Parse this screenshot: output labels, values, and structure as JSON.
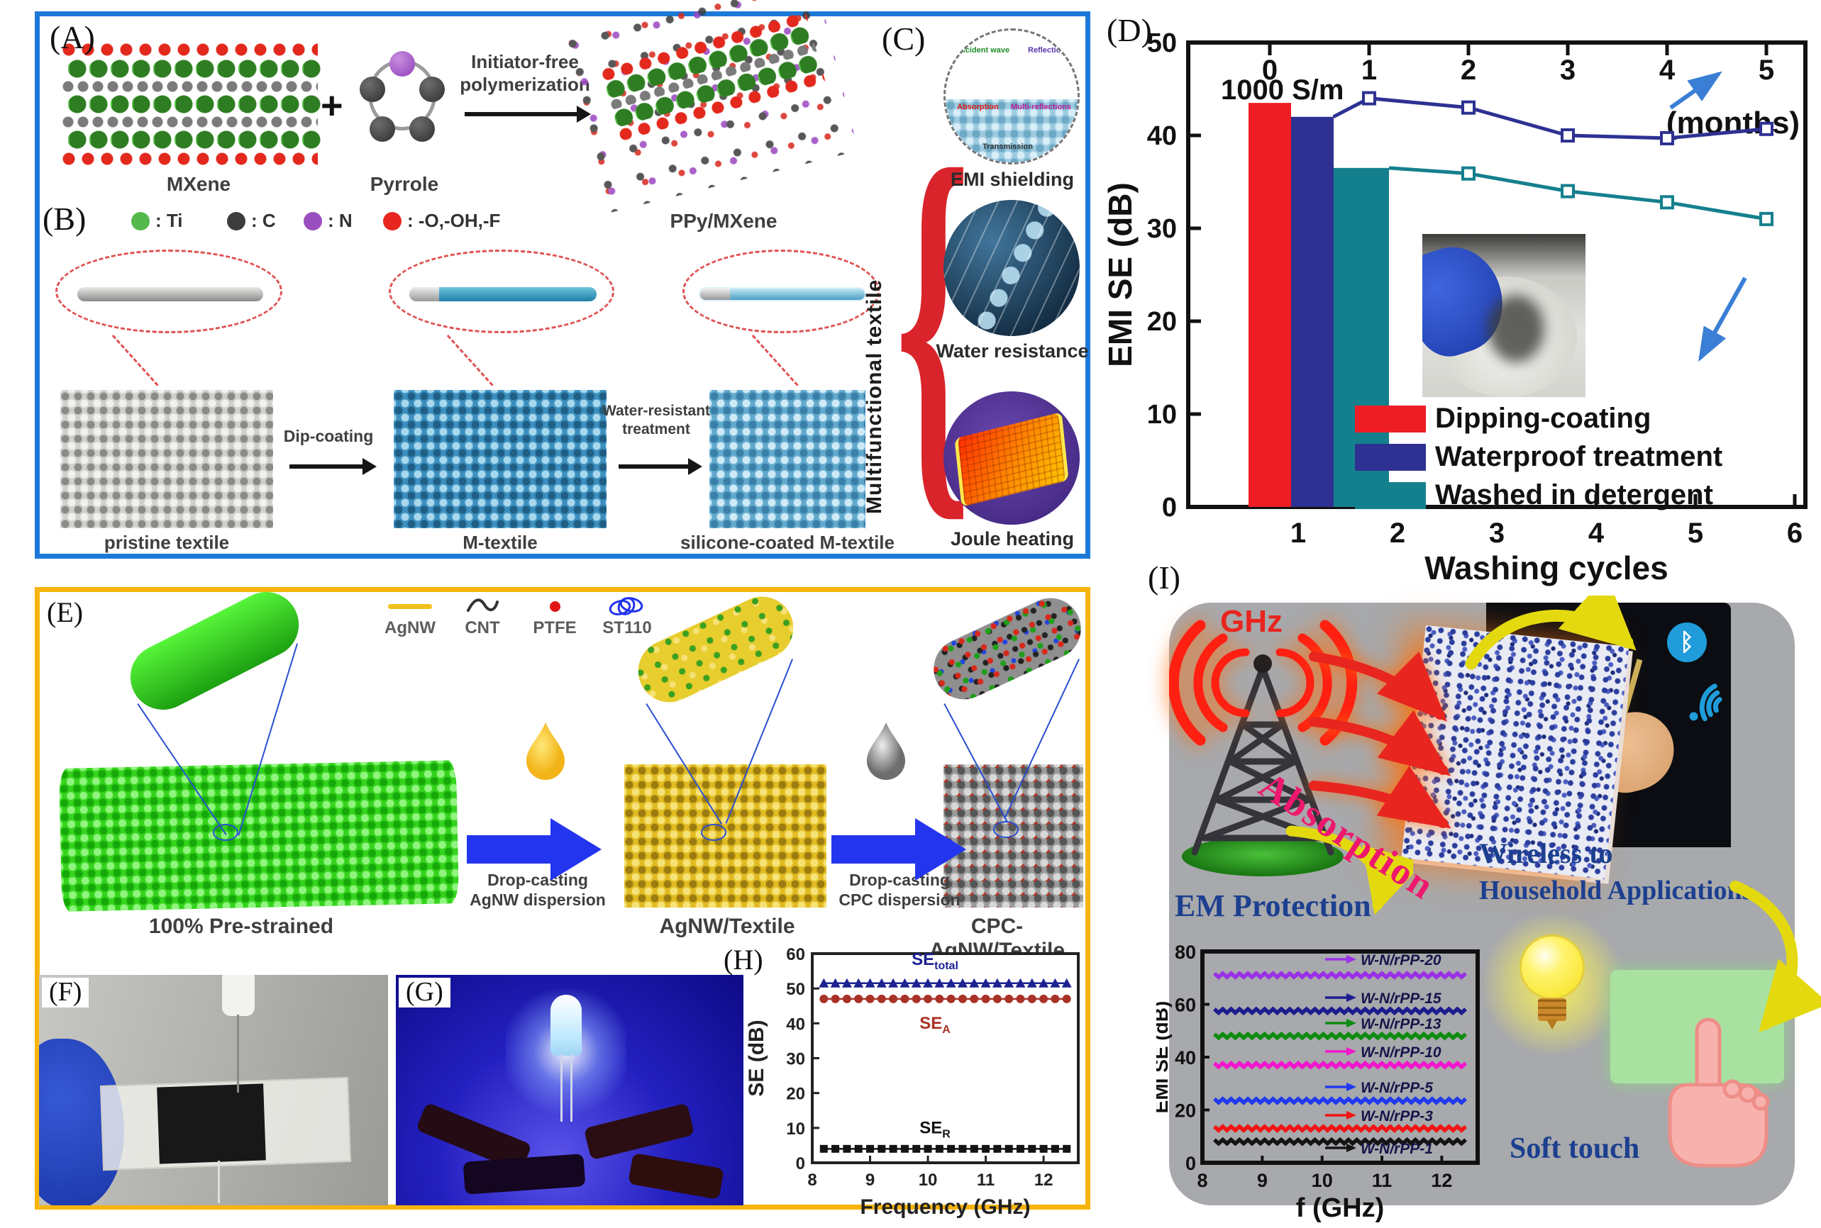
{
  "colors": {
    "box_abc_border": "#1d79d8",
    "box_efgh_border": "#f6b40c",
    "panel_i_bg": "#a7a9ac",
    "dark_blue_text": "#1c3f8f",
    "absorption_pink": "#ee186e",
    "ghz_red": "#e8251f"
  },
  "panelA": {
    "tag": "(A)",
    "reactant1": "MXene",
    "plus": "+",
    "reactant2": "Pyrrole",
    "arrow_label_line1": "Initiator-free",
    "arrow_label_line2": "polymerization",
    "product": "PPy/MXene"
  },
  "panelB": {
    "tag": "(B)",
    "legend": [
      {
        "label": ": Ti",
        "color": "#55b84c"
      },
      {
        "label": ": C",
        "color": "#3d3d3d"
      },
      {
        "label": ": N",
        "color": "#9a4fc0"
      },
      {
        "label": ": -O,-OH,-F",
        "color": "#e8251f"
      }
    ],
    "step1_label": "Dip-coating",
    "step2_label_line1": "Water-resistant",
    "step2_label_line2": "treatment",
    "captions": [
      "pristine textile",
      "M-textile",
      "silicone-coated M-textile"
    ]
  },
  "panelC": {
    "tag": "(C)",
    "side_label": "Multifunctional textile",
    "emi_caption": "EMI shielding",
    "emi_micro": {
      "incident": "Incident wave",
      "reflection": "Reflection",
      "absorption": "Absorption",
      "multi": "Multi-reflections",
      "transmission": "Transmission"
    },
    "water_caption": "Water resistance",
    "joule_caption": "Joule heating"
  },
  "panelD": {
    "tag": "(D)"
  },
  "panelE": {
    "tag": "(E)",
    "legend": [
      {
        "label": "AgNW"
      },
      {
        "label": "CNT"
      },
      {
        "label": "PTFE"
      },
      {
        "label": "ST110"
      }
    ],
    "step1_line1": "Drop-casting",
    "step1_line2": "AgNW dispersion",
    "step2_line1": "Drop-casting",
    "step2_line2": "CPC dispersion",
    "captions": [
      "100% Pre-strained",
      "AgNW/Textile",
      "CPC-AgNW/Textile"
    ]
  },
  "panelF": {
    "tag": "(F)"
  },
  "panelG": {
    "tag": "(G)"
  },
  "panelH": {
    "tag": "(H)"
  },
  "panelI": {
    "tag": "(I)",
    "ghz": "GHz",
    "absorption": "Absorption",
    "em_protection": "EM Protection",
    "wireless_line1": "Wireless to",
    "wireless_line2": "Household Applications",
    "soft_touch": "Soft touch",
    "bluetooth_glyph": "ᛒ"
  },
  "chart_data": [
    {
      "id": "washing-durability",
      "type": "bar+line",
      "ylabel": "EMI SE (dB)",
      "ylim": [
        0,
        50
      ],
      "yticks": [
        0,
        10,
        20,
        30,
        40,
        50
      ],
      "xlabel_bottom": "Washing cycles",
      "xticks_bottom": [
        1,
        2,
        3,
        4,
        5,
        6
      ],
      "xlabel_top": "(months)",
      "xticks_top": [
        0,
        1,
        2,
        3,
        4,
        5
      ],
      "annotation": "1000 S/m",
      "bars": [
        {
          "name": "Dipping-coating",
          "value": 43.5,
          "color": "#ee1c25"
        },
        {
          "name": "Waterproof treatment",
          "value": 42,
          "color": "#2e3192"
        },
        {
          "name": "Washed in detergent",
          "value": 36.5,
          "color": "#15808d"
        }
      ],
      "lines": [
        {
          "name": "Waterproof treatment over months",
          "color": "#2e3192",
          "x_months": [
            0.64,
            1,
            2,
            3,
            4,
            5
          ],
          "y": [
            42,
            44,
            43,
            40,
            39.7,
            40.7
          ],
          "marker_from": 1
        },
        {
          "name": "Washed in detergent over months",
          "color": "#15808d",
          "x_months": [
            1.2,
            2,
            3,
            4,
            5
          ],
          "y": [
            36.5,
            35.9,
            34,
            32.8,
            31
          ],
          "marker_from": 1
        }
      ],
      "legend": [
        {
          "label": "Dipping-coating",
          "color": "#ee1c25"
        },
        {
          "label": "Waterproof treatment",
          "color": "#2e3192"
        },
        {
          "label": "Washed in detergent",
          "color": "#15808d"
        }
      ]
    },
    {
      "id": "se-frequency",
      "type": "scatter",
      "ylabel": "SE (dB)",
      "ylim": [
        0,
        60
      ],
      "yticks": [
        0,
        10,
        20,
        30,
        40,
        50,
        60
      ],
      "xlabel": "Frequency (GHz)",
      "xlim": [
        8,
        12.6
      ],
      "xticks": [
        8,
        9,
        10,
        11,
        12
      ],
      "x_range": [
        8.2,
        12.4
      ],
      "series": [
        {
          "name": "SE_total",
          "label_main": "SE",
          "label_sub": "total",
          "value": 51.5,
          "color": "#1c2290",
          "marker": "triangle"
        },
        {
          "name": "SE_A",
          "label_main": "SE",
          "label_sub": "A",
          "value": 47,
          "color": "#a93226",
          "marker": "circle"
        },
        {
          "name": "SE_R",
          "label_main": "SE",
          "label_sub": "R",
          "value": 4,
          "color": "#141414",
          "marker": "square"
        }
      ]
    },
    {
      "id": "emi-se-frequency",
      "type": "line",
      "ylabel": "EMI SE (dB)",
      "ylim": [
        0,
        80
      ],
      "yticks": [
        0,
        20,
        40,
        60,
        80
      ],
      "xlabel": "f (GHz)",
      "xlim": [
        8,
        12.6
      ],
      "xticks": [
        8,
        9,
        10,
        11,
        12
      ],
      "x_range": [
        8.2,
        12.45
      ],
      "series": [
        {
          "name": "W-N/rPP-20",
          "value": 71,
          "color": "#9b30e8"
        },
        {
          "name": "W-N/rPP-15",
          "value": 57.5,
          "color": "#1c1c8f"
        },
        {
          "name": "W-N/rPP-13",
          "value": 48,
          "color": "#0e8c12"
        },
        {
          "name": "W-N/rPP-10",
          "value": 37,
          "color": "#f316ce"
        },
        {
          "name": "W-N/rPP-5",
          "value": 23.5,
          "color": "#2038f0"
        },
        {
          "name": "W-N/rPP-3",
          "value": 13,
          "color": "#f01414"
        },
        {
          "name": "W-N/rPP-1",
          "value": 8,
          "color": "#141414"
        }
      ]
    }
  ]
}
